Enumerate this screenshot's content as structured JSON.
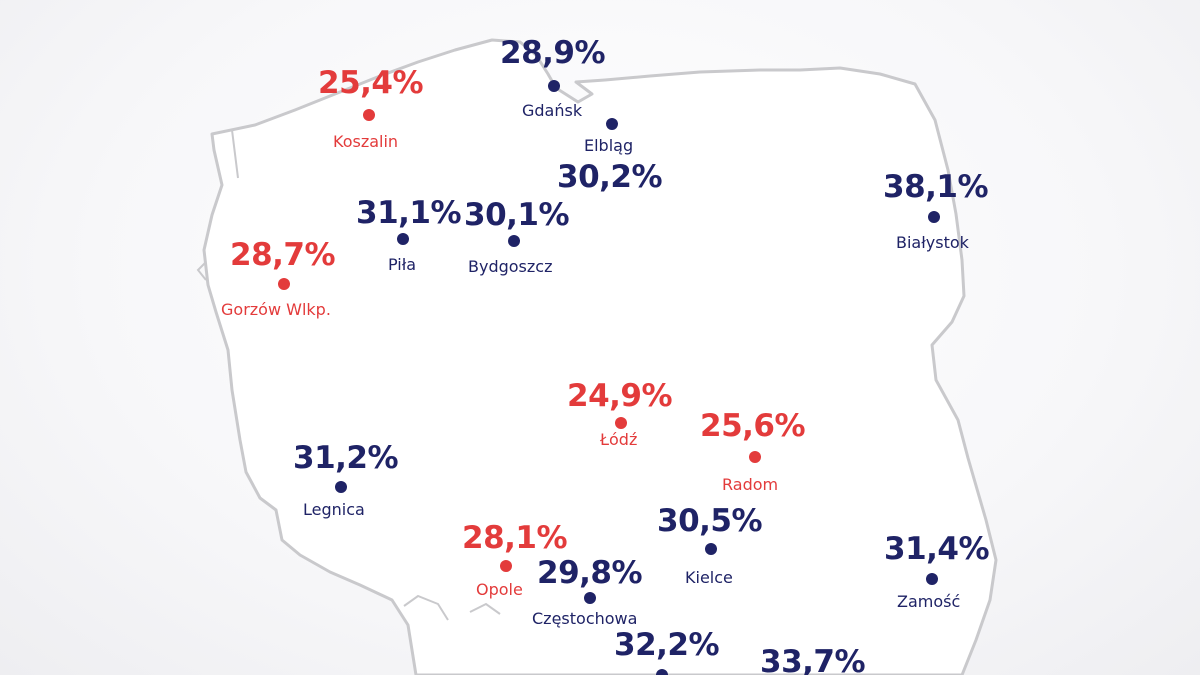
{
  "colors": {
    "above": "#1f2366",
    "below": "#e33b3b",
    "border": "#c9c9cc",
    "land": "#ffffff"
  },
  "cities": [
    {
      "name": "Gdańsk",
      "value": "28,9%",
      "group": "above"
    },
    {
      "name": "Koszalin",
      "value": "25,4%",
      "group": "below"
    },
    {
      "name": "Elbląg",
      "value": "30,2%",
      "group": "above"
    },
    {
      "name": "Białystok",
      "value": "38,1%",
      "group": "above"
    },
    {
      "name": "Piła",
      "value": "31,1%",
      "group": "above"
    },
    {
      "name": "Bydgoszcz",
      "value": "30,1%",
      "group": "above"
    },
    {
      "name": "Gorzów Wlkp.",
      "value": "28,7%",
      "group": "below"
    },
    {
      "name": "Łódź",
      "value": "24,9%",
      "group": "below"
    },
    {
      "name": "Radom",
      "value": "25,6%",
      "group": "below"
    },
    {
      "name": "Legnica",
      "value": "31,2%",
      "group": "above"
    },
    {
      "name": "Opole",
      "value": "28,1%",
      "group": "below"
    },
    {
      "name": "Kielce",
      "value": "30,5%",
      "group": "above"
    },
    {
      "name": "Częstochowa",
      "value": "29,8%",
      "group": "above"
    },
    {
      "name": "Zamość",
      "value": "31,4%",
      "group": "above"
    },
    {
      "name": "",
      "value": "32,2%",
      "group": "above"
    },
    {
      "name": "",
      "value": "33,7%",
      "group": "above"
    }
  ]
}
